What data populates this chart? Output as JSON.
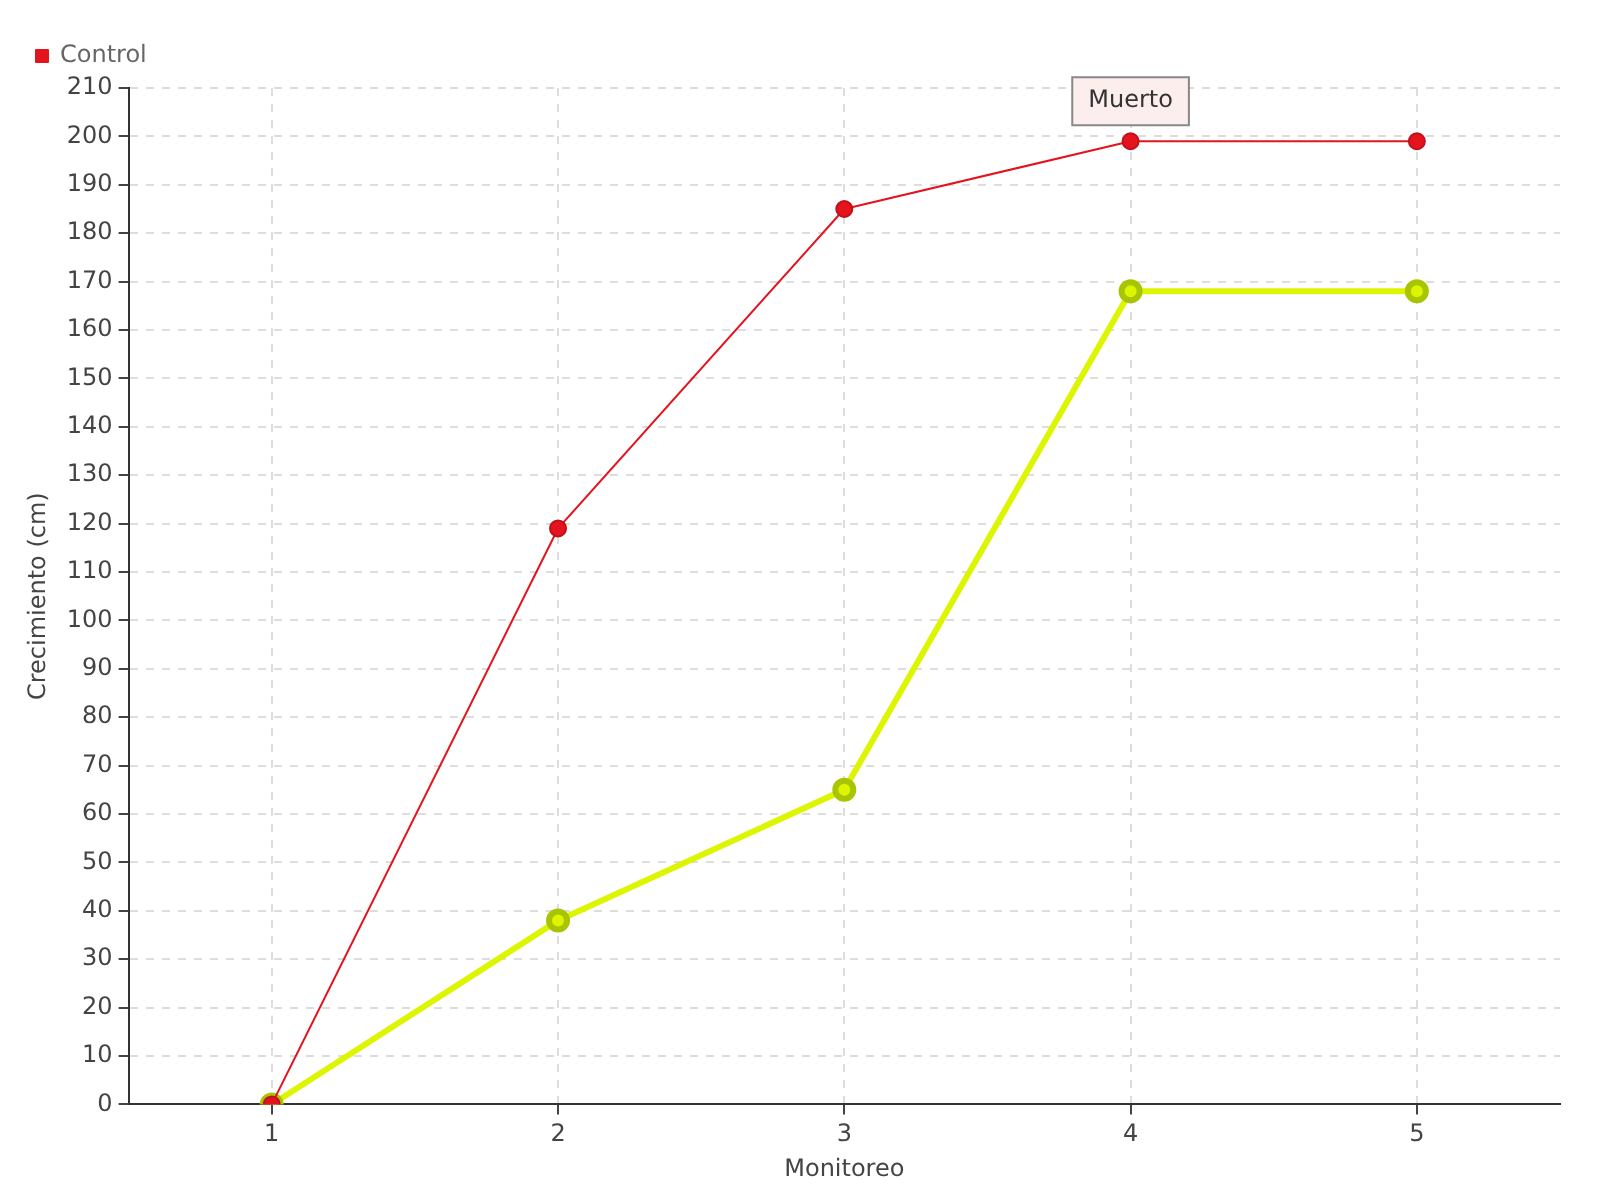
{
  "chart_data": {
    "type": "line",
    "xlabel": "Monitoreo",
    "ylabel": "Crecimiento (cm)",
    "x": [
      1,
      2,
      3,
      4,
      5
    ],
    "series": [
      {
        "color": "#ddf500",
        "values": [
          0,
          38,
          65,
          168,
          168
        ]
      },
      {
        "name": "Control",
        "color": "#e3141e",
        "values": [
          0,
          119,
          185,
          199,
          199
        ]
      }
    ],
    "xlim": [
      0.5,
      5.5
    ],
    "xticks": [
      1,
      2,
      3,
      4,
      5
    ],
    "ylim": [
      0,
      210
    ],
    "yticks": [
      0,
      10,
      20,
      30,
      40,
      50,
      60,
      70,
      80,
      90,
      100,
      110,
      120,
      130,
      140,
      150,
      160,
      170,
      180,
      190,
      200,
      210
    ],
    "grid": true,
    "legend": "top left",
    "marker": "circle",
    "line_style": "solid",
    "annotations": [
      {
        "text": "Muerto",
        "x": 4,
        "y": 199
      }
    ]
  }
}
